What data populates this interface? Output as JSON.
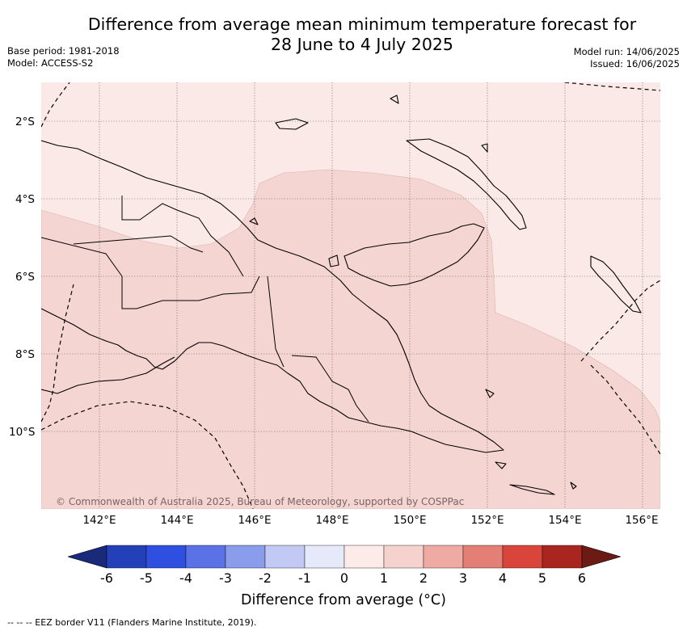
{
  "title": {
    "line1": "Difference from average mean minimum temperature forecast for",
    "line2": "28 June to 4 July 2025"
  },
  "meta": {
    "base_period": "Base period: 1981-2018",
    "model": "Model: ACCESS-S2",
    "model_run": "Model run: 14/06/2025",
    "issued": "Issued: 16/06/2025"
  },
  "map": {
    "region": "Papua New Guinea",
    "lat_ticks": [
      "2°S",
      "4°S",
      "6°S",
      "8°S",
      "10°S"
    ],
    "lon_ticks": [
      "142°E",
      "144°E",
      "146°E",
      "148°E",
      "150°E",
      "152°E",
      "154°E",
      "156°E"
    ],
    "copyright": "© Commonwealth of Australia 2025, Bureau of Meteorology, supported by COSPPac",
    "colors": {
      "anomaly_0_1": "#fbe9e7",
      "anomaly_1_2": "#f5d5d2",
      "land_outline": "#000000",
      "grid": "#555555"
    }
  },
  "colorbar": {
    "ticks": [
      "-6",
      "-5",
      "-4",
      "-3",
      "-2",
      "-1",
      "0",
      "1",
      "2",
      "3",
      "4",
      "5",
      "6"
    ],
    "colors": [
      "#1a2a7a",
      "#2440b8",
      "#2f4fe0",
      "#5a72e6",
      "#8a9cec",
      "#c2c9f4",
      "#e6e9fa",
      "#fcebe8",
      "#f5d2ce",
      "#eeaaa3",
      "#e47f76",
      "#d9453a",
      "#a8261f",
      "#6b1a14"
    ],
    "label": "Difference from average (°C)"
  },
  "footnote": "-- -- -- EEZ border V11 (Flanders Marine Institute, 2019)."
}
